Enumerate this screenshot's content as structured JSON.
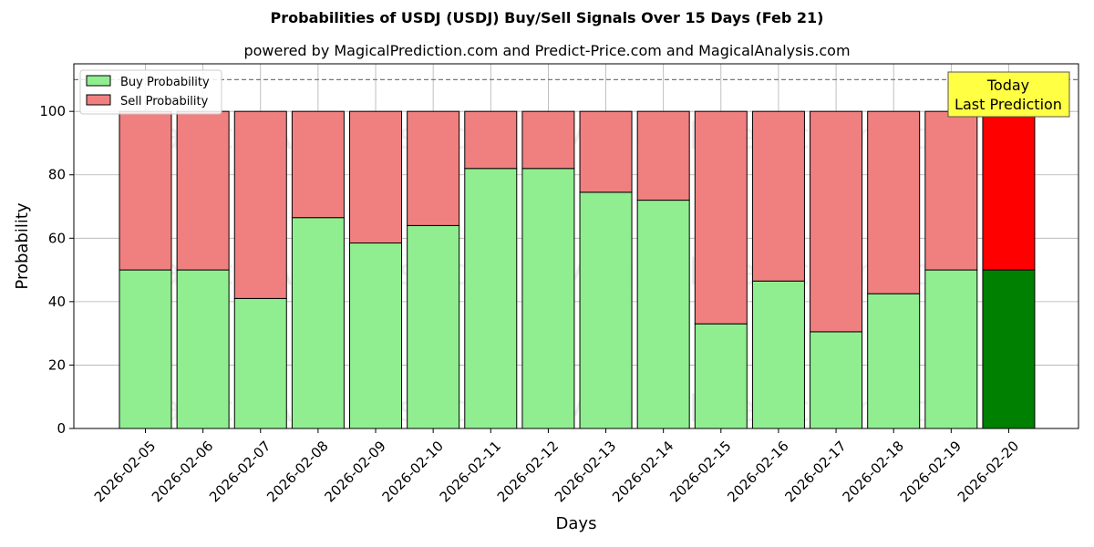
{
  "chart_data": {
    "type": "bar",
    "title": "Probabilities of USDJ (USDJ) Buy/Sell Signals Over 15 Days (Feb 21)",
    "subtitle": "powered by MagicalPrediction.com and Predict-Price.com and MagicalAnalysis.com",
    "xlabel": "Days",
    "ylabel": "Probability",
    "ylim": [
      0,
      115
    ],
    "yticks": [
      "0",
      "20",
      "40",
      "60",
      "80",
      "100"
    ],
    "reference_line": 110,
    "grid": true,
    "legend_position": "top-left",
    "categories": [
      "2026-02-05",
      "2026-02-06",
      "2026-02-07",
      "2026-02-08",
      "2026-02-09",
      "2026-02-10",
      "2026-02-11",
      "2026-02-12",
      "2026-02-13",
      "2026-02-14",
      "2026-02-15",
      "2026-02-16",
      "2026-02-17",
      "2026-02-18",
      "2026-02-19",
      "2026-02-20"
    ],
    "series": [
      {
        "name": "Buy Probability",
        "color": "#90ee90",
        "today_color": "#008000",
        "values": [
          50,
          50,
          41,
          66.5,
          58.5,
          64,
          82,
          82,
          74.5,
          72,
          33,
          46.5,
          30.5,
          42.5,
          50,
          50
        ]
      },
      {
        "name": "Sell Probability",
        "color": "#f08080",
        "today_color": "#ff0000",
        "values": [
          50,
          50,
          59,
          33.5,
          41.5,
          36,
          18,
          18,
          25.5,
          28,
          67,
          53.5,
          69.5,
          57.5,
          50,
          50
        ]
      }
    ],
    "annotation": {
      "line1": "Today",
      "line2": "Last Prediction",
      "color": "#ffff44"
    },
    "watermarks": [
      "MagicalAnalysis.com",
      "MagicalPrediction.com"
    ]
  }
}
